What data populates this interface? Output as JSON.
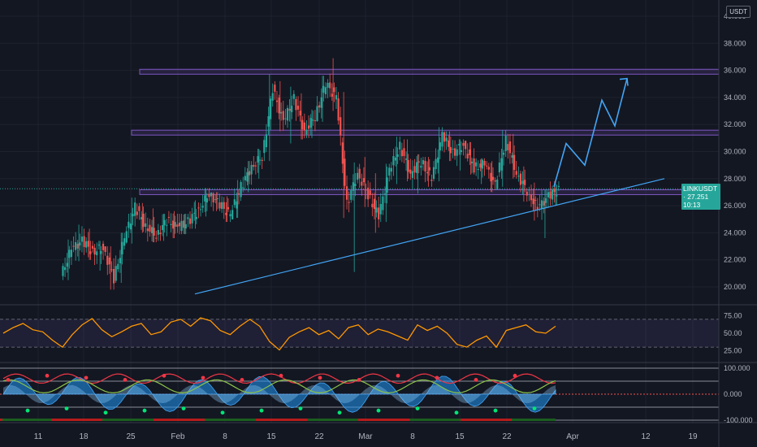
{
  "header": {
    "currency_label": "USDT"
  },
  "chart_data": {
    "type": "candlestick",
    "symbol": "LINKUSDT",
    "last_price": "27.251",
    "countdown": "10:13",
    "price_axis_ticks": [
      "40.000",
      "38.000",
      "36.000",
      "34.000",
      "32.000",
      "30.000",
      "28.000",
      "26.000",
      "24.000",
      "22.000",
      "20.000"
    ],
    "ylim": [
      19,
      41
    ],
    "time_axis_ticks": [
      "11",
      "18",
      "25",
      "Feb",
      "8",
      "15",
      "22",
      "Mar",
      "8",
      "15",
      "22",
      "Apr",
      "12",
      "19"
    ],
    "ohlc": [
      [
        20.8,
        23.5,
        20.5,
        22.8
      ],
      [
        22.8,
        24.6,
        21.9,
        23.4
      ],
      [
        23.4,
        24.3,
        22.0,
        22.6
      ],
      [
        22.6,
        23.4,
        21.2,
        22.9
      ],
      [
        22.9,
        23.0,
        19.8,
        20.6
      ],
      [
        20.6,
        24.0,
        20.3,
        23.6
      ],
      [
        23.6,
        26.6,
        23.2,
        25.9
      ],
      [
        25.9,
        26.2,
        24.0,
        24.5
      ],
      [
        24.5,
        25.8,
        23.3,
        23.8
      ],
      [
        23.8,
        25.4,
        23.4,
        24.9
      ],
      [
        24.9,
        25.6,
        23.6,
        24.4
      ],
      [
        24.4,
        25.4,
        23.9,
        24.8
      ],
      [
        24.8,
        26.4,
        24.3,
        25.7
      ],
      [
        25.7,
        27.3,
        25.2,
        26.9
      ],
      [
        26.9,
        27.0,
        25.6,
        26.1
      ],
      [
        26.1,
        26.7,
        24.8,
        25.3
      ],
      [
        25.3,
        27.9,
        25.1,
        27.4
      ],
      [
        27.4,
        29.3,
        27.0,
        28.9
      ],
      [
        28.9,
        30.2,
        28.0,
        29.6
      ],
      [
        29.6,
        35.7,
        29.3,
        34.6
      ],
      [
        34.6,
        35.2,
        31.5,
        32.2
      ],
      [
        32.2,
        34.8,
        30.6,
        33.9
      ],
      [
        33.9,
        34.3,
        30.9,
        31.5
      ],
      [
        31.5,
        33.1,
        31.0,
        32.6
      ],
      [
        32.6,
        35.6,
        32.2,
        35.0
      ],
      [
        35.0,
        36.9,
        33.0,
        34.0
      ],
      [
        34.0,
        34.4,
        25.1,
        26.1
      ],
      [
        26.1,
        29.2,
        21.1,
        28.4
      ],
      [
        28.4,
        29.6,
        25.9,
        26.8
      ],
      [
        26.8,
        28.4,
        24.0,
        25.2
      ],
      [
        25.2,
        29.1,
        24.8,
        28.6
      ],
      [
        28.6,
        31.1,
        27.6,
        30.4
      ],
      [
        30.4,
        30.9,
        27.8,
        28.4
      ],
      [
        28.4,
        29.8,
        26.9,
        29.3
      ],
      [
        29.3,
        29.6,
        27.4,
        28.0
      ],
      [
        28.0,
        31.8,
        27.8,
        31.2
      ],
      [
        31.2,
        31.5,
        29.3,
        29.9
      ],
      [
        29.9,
        30.9,
        28.6,
        30.5
      ],
      [
        30.5,
        30.7,
        28.3,
        28.8
      ],
      [
        28.8,
        29.5,
        27.6,
        29.1
      ],
      [
        29.1,
        29.3,
        27.0,
        27.5
      ],
      [
        27.5,
        31.6,
        27.4,
        30.9
      ],
      [
        30.9,
        31.3,
        28.0,
        28.4
      ],
      [
        28.4,
        28.9,
        26.3,
        27.1
      ],
      [
        27.1,
        27.7,
        24.9,
        25.8
      ],
      [
        25.8,
        27.2,
        23.6,
        26.7
      ],
      [
        26.7,
        27.8,
        26.0,
        27.2
      ]
    ],
    "forecast_path": [
      [
        27.4,
        0
      ],
      [
        30.6,
        1
      ],
      [
        29.0,
        2
      ],
      [
        33.8,
        3
      ],
      [
        31.9,
        4
      ],
      [
        35.4,
        5
      ]
    ],
    "horizontal_levels": [
      {
        "price": 35.9
      },
      {
        "price": 31.4
      },
      {
        "price": 27.0
      }
    ],
    "trendline": {
      "from_price": 19.6,
      "to_price": 28.0
    },
    "rsi": {
      "levels": [
        "75.00",
        "50.00",
        "25.00"
      ],
      "upper": 70,
      "lower": 30,
      "series": [
        50,
        58,
        64,
        55,
        52,
        40,
        30,
        48,
        62,
        71,
        55,
        45,
        52,
        60,
        64,
        48,
        52,
        66,
        70,
        60,
        72,
        68,
        54,
        48,
        60,
        70,
        60,
        38,
        26,
        44,
        52,
        58,
        48,
        54,
        42,
        58,
        62,
        48,
        56,
        52,
        46,
        40,
        62,
        54,
        60,
        50,
        34,
        30,
        40,
        46,
        30,
        54,
        58,
        62,
        52,
        50,
        60
      ]
    },
    "oscillator": {
      "levels": [
        "100.000",
        "0.000",
        "-100.000"
      ]
    }
  }
}
